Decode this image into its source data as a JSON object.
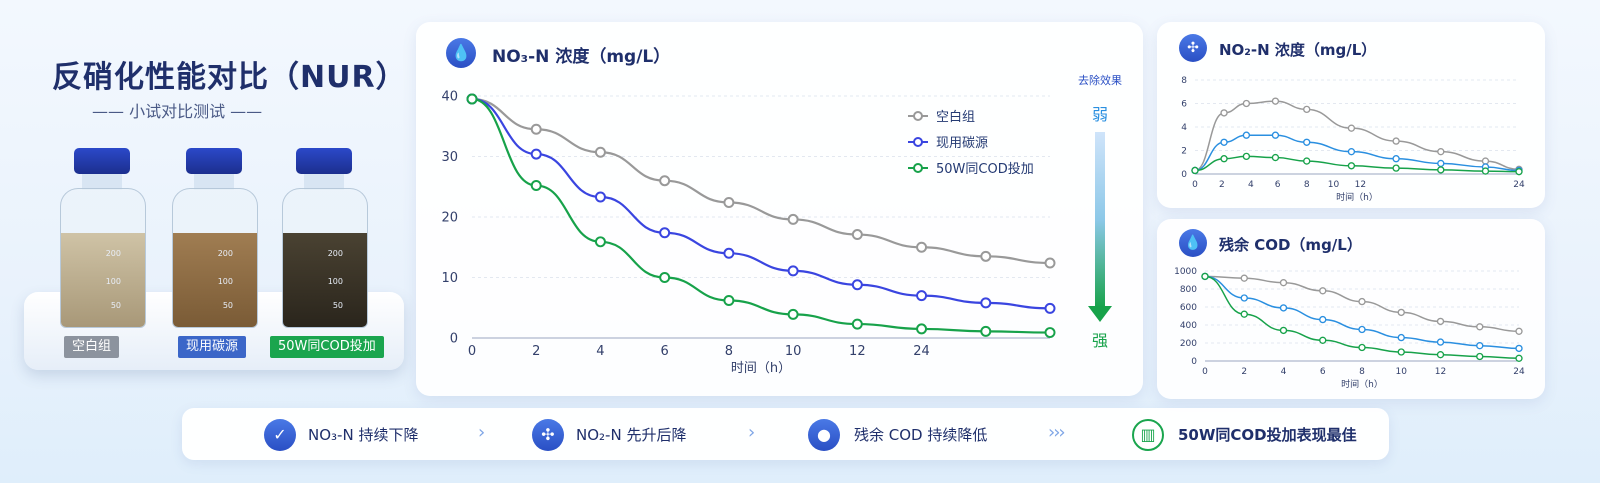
{
  "hero": {
    "title": "反硝化性能对比（NUR）",
    "subtitle": "—— 小试对比测试 ——",
    "bottles": [
      {
        "label": "空白组",
        "marks": [
          "200",
          "100",
          "50"
        ],
        "tag_color": "#8c939e",
        "liquid_color": "#b9ab8e"
      },
      {
        "label": "现用碳源",
        "marks": [
          "200",
          "100",
          "50"
        ],
        "tag_color": "#3b66c8",
        "liquid_color": "#8b6a44"
      },
      {
        "label": "50W同COD投加",
        "marks": [
          "200",
          "100",
          "50"
        ],
        "tag_color": "#1aa54e",
        "liquid_color": "#3a3428"
      }
    ]
  },
  "legend": [
    "空白组",
    "现用碳源",
    "50W同COD投加"
  ],
  "removal": {
    "title": "去除效果",
    "weak": "弱",
    "strong": "强"
  },
  "colors": {
    "gray": "#999999",
    "blue": "#3a45e0",
    "green": "#17a24a",
    "lightblue": "#2a8fe0"
  },
  "chart_data": [
    {
      "type": "line",
      "title": "NO₃-N 浓度（mg/L）",
      "xlabel": "时间（h）",
      "categories": [
        "0",
        "2",
        "4",
        "6",
        "8",
        "10",
        "12",
        "24"
      ],
      "x": [
        0,
        2,
        4,
        6,
        8,
        10,
        12,
        14,
        16,
        18
      ],
      "ylim": [
        0,
        40
      ],
      "yticks": [
        0,
        10,
        20,
        30,
        40
      ],
      "legend_position": "top-right",
      "series": [
        {
          "name": "空白组",
          "color": "#999999",
          "values": [
            39.5,
            34.5,
            30.7,
            26.0,
            22.4,
            19.6,
            17.1,
            15.0,
            13.5,
            12.4
          ]
        },
        {
          "name": "现用碳源",
          "color": "#3a45e0",
          "values": [
            39.5,
            30.4,
            23.3,
            17.4,
            14.0,
            11.1,
            8.8,
            7.0,
            5.8,
            4.9
          ]
        },
        {
          "name": "50W同COD投加",
          "color": "#17a24a",
          "values": [
            39.5,
            25.2,
            15.9,
            10.0,
            6.2,
            3.9,
            2.3,
            1.5,
            1.1,
            0.9
          ]
        }
      ]
    },
    {
      "type": "line",
      "title": "NO₂-N 浓度（mg/L）",
      "xlabel": "时间（h）",
      "categories": [
        "0",
        "2",
        "4",
        "6",
        "8",
        "10",
        "12",
        "24"
      ],
      "x": [
        0,
        1.3,
        2.3,
        3.6,
        5.0,
        7.0,
        9.0,
        11.0,
        13.0,
        14.5
      ],
      "tick_x": [
        0,
        1.2,
        2.5,
        3.7,
        5.0,
        6.2,
        7.4,
        8.7,
        10.0,
        11.2,
        12.5,
        13.7,
        14.5
      ],
      "tick_labels": [
        "0",
        "2",
        "4",
        "6",
        "8",
        "10",
        "12",
        "24"
      ],
      "ylim": [
        0,
        8
      ],
      "yticks": [
        0,
        2,
        4,
        6,
        8
      ],
      "series": [
        {
          "name": "空白组",
          "color": "#999999",
          "values": [
            0.3,
            5.2,
            6.0,
            6.2,
            5.5,
            3.9,
            2.8,
            1.9,
            1.1,
            0.4
          ]
        },
        {
          "name": "现用碳源",
          "color": "#2a8fe0",
          "values": [
            0.3,
            2.7,
            3.3,
            3.3,
            2.7,
            1.9,
            1.3,
            0.9,
            0.6,
            0.3
          ]
        },
        {
          "name": "50W同COD投加",
          "color": "#17a24a",
          "values": [
            0.3,
            1.3,
            1.5,
            1.4,
            1.1,
            0.7,
            0.5,
            0.35,
            0.25,
            0.2
          ]
        }
      ]
    },
    {
      "type": "line",
      "title": "残余 COD（mg/L）",
      "xlabel": "时间（h）",
      "categories": [
        "0",
        "2",
        "4",
        "6",
        "8",
        "10",
        "12",
        "24"
      ],
      "x": [
        0,
        2,
        4,
        6,
        8,
        10,
        12,
        14,
        16
      ],
      "ylim": [
        0,
        1000
      ],
      "yticks": [
        0,
        200,
        400,
        600,
        800,
        1000
      ],
      "series": [
        {
          "name": "空白组",
          "color": "#999999",
          "values": [
            940,
            920,
            870,
            780,
            660,
            540,
            440,
            380,
            330
          ]
        },
        {
          "name": "现用碳源",
          "color": "#2a8fe0",
          "values": [
            940,
            700,
            590,
            460,
            350,
            260,
            210,
            170,
            140
          ]
        },
        {
          "name": "50W同COD投加",
          "color": "#17a24a",
          "values": [
            940,
            520,
            340,
            230,
            150,
            100,
            70,
            50,
            30
          ]
        }
      ]
    }
  ],
  "steps": [
    {
      "label": "NO₃-N 持续下降",
      "icon": "check-drop-icon"
    },
    {
      "label": "NO₂-N 先升后降",
      "icon": "molecule-icon"
    },
    {
      "label": "残余 COD 持续降低",
      "icon": "drop-icon"
    },
    {
      "label": "50W同COD投加表现最佳",
      "icon": "bar-chart-icon"
    }
  ],
  "chevrons": [
    "›",
    "›",
    "›››"
  ]
}
